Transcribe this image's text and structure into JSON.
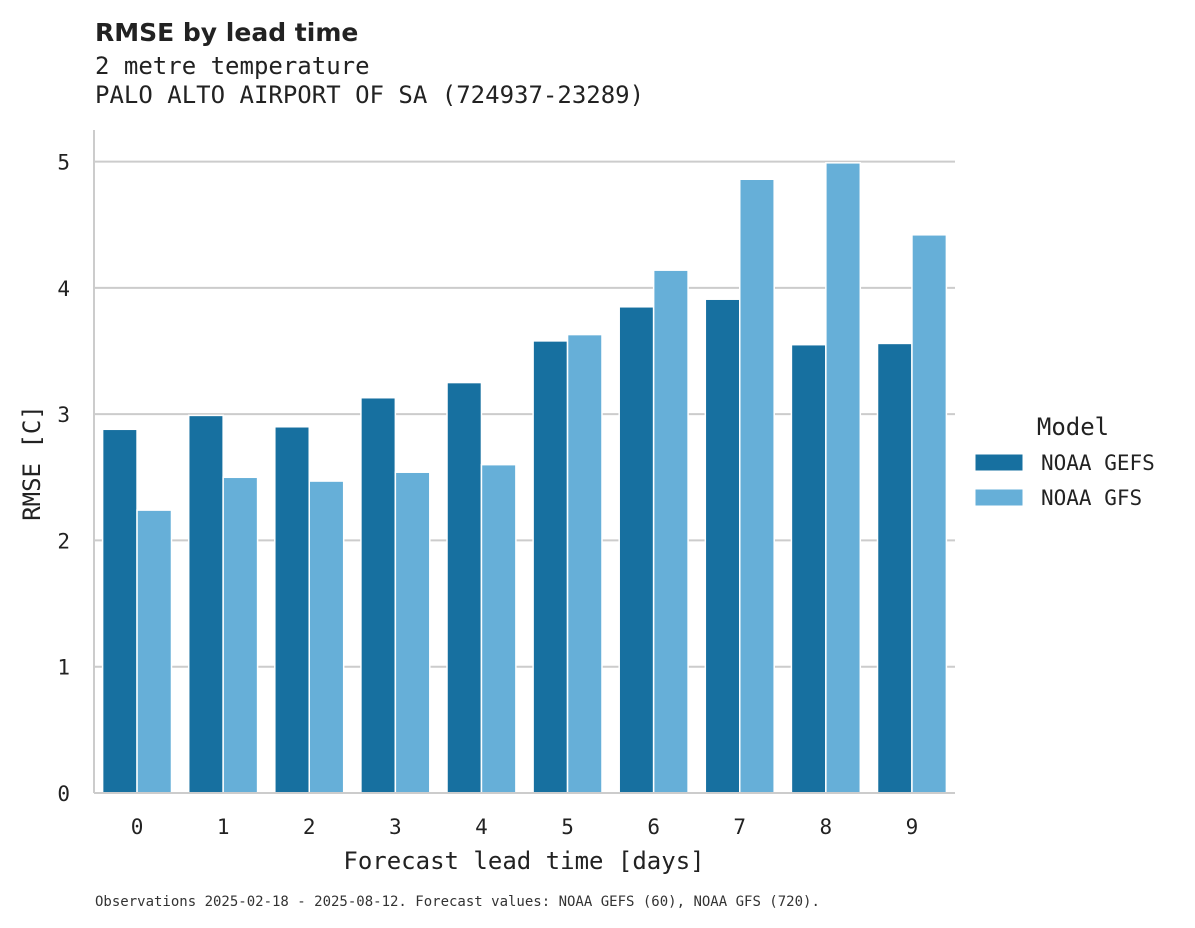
{
  "chart_data": {
    "type": "bar",
    "title": "RMSE by lead time",
    "subtitle_lines": [
      "2 metre temperature",
      "PALO ALTO AIRPORT OF SA (724937-23289)"
    ],
    "xlabel": "Forecast lead time [days]",
    "ylabel": "RMSE [C]",
    "categories": [
      "0",
      "1",
      "2",
      "3",
      "4",
      "5",
      "6",
      "7",
      "8",
      "9"
    ],
    "ylim": [
      0,
      5.25
    ],
    "yticks": [
      0,
      1,
      2,
      3,
      4,
      5
    ],
    "grid": "y",
    "legend": {
      "title": "Model",
      "placement": "right"
    },
    "series": [
      {
        "name": "NOAA GEFS",
        "color": "#1770a0",
        "values": [
          2.88,
          2.99,
          2.9,
          3.13,
          3.25,
          3.58,
          3.85,
          3.91,
          3.55,
          3.56
        ]
      },
      {
        "name": "NOAA GFS",
        "color": "#66afd8",
        "values": [
          2.24,
          2.5,
          2.47,
          2.54,
          2.6,
          3.63,
          4.14,
          4.86,
          4.99,
          4.42
        ]
      }
    ],
    "footnote": "Observations 2025-02-18 - 2025-08-12. Forecast values: NOAA GEFS (60), NOAA GFS (720)."
  }
}
